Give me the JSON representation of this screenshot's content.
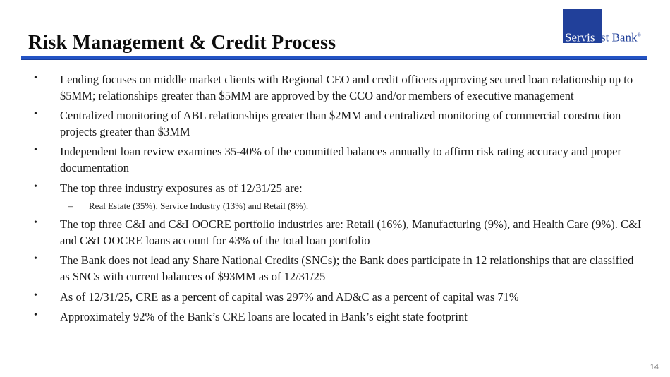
{
  "slide": {
    "title": "Risk Management & Credit Process",
    "page_number": "14",
    "accent_color": "#2353c4",
    "logo": {
      "square_text": "Servis",
      "right_text": "1st Bank",
      "registered_mark": "®",
      "brand_blue": "#21409a"
    },
    "markers": {
      "bullet": "•",
      "dash": "–"
    },
    "bullets": [
      {
        "level": 1,
        "text": "Lending focuses on middle market clients with Regional CEO and credit officers approving secured loan relationship up to $5MM; relationships greater than $5MM are approved by the CCO and/or members of executive management"
      },
      {
        "level": 1,
        "text": "Centralized monitoring of ABL relationships greater than $2MM and centralized monitoring of commercial construction projects greater than $3MM"
      },
      {
        "level": 1,
        "text": "Independent loan review examines 35-40% of the committed balances annually to affirm risk rating accuracy and proper documentation"
      },
      {
        "level": 1,
        "text": "The top three industry exposures as of 12/31/25 are:"
      },
      {
        "level": 2,
        "text": "Real Estate (35%), Service Industry (13%) and Retail (8%)."
      },
      {
        "level": 1,
        "text": "The top three C&I and C&I OOCRE portfolio industries are: Retail (16%), Manufacturing (9%), and Health Care (9%). C&I and C&I OOCRE loans account for 43% of the total loan portfolio"
      },
      {
        "level": 1,
        "text": "The Bank does not lead any Share National Credits (SNCs); the Bank does participate in 12 relationships that are classified as SNCs with current balances of $93MM as of 12/31/25"
      },
      {
        "level": 1,
        "text": "As of 12/31/25, CRE as a percent of capital was 297% and AD&C as a percent of capital was 71%"
      },
      {
        "level": 1,
        "text": "Approximately 92% of the Bank’s CRE loans are located in Bank’s eight state footprint"
      }
    ]
  }
}
